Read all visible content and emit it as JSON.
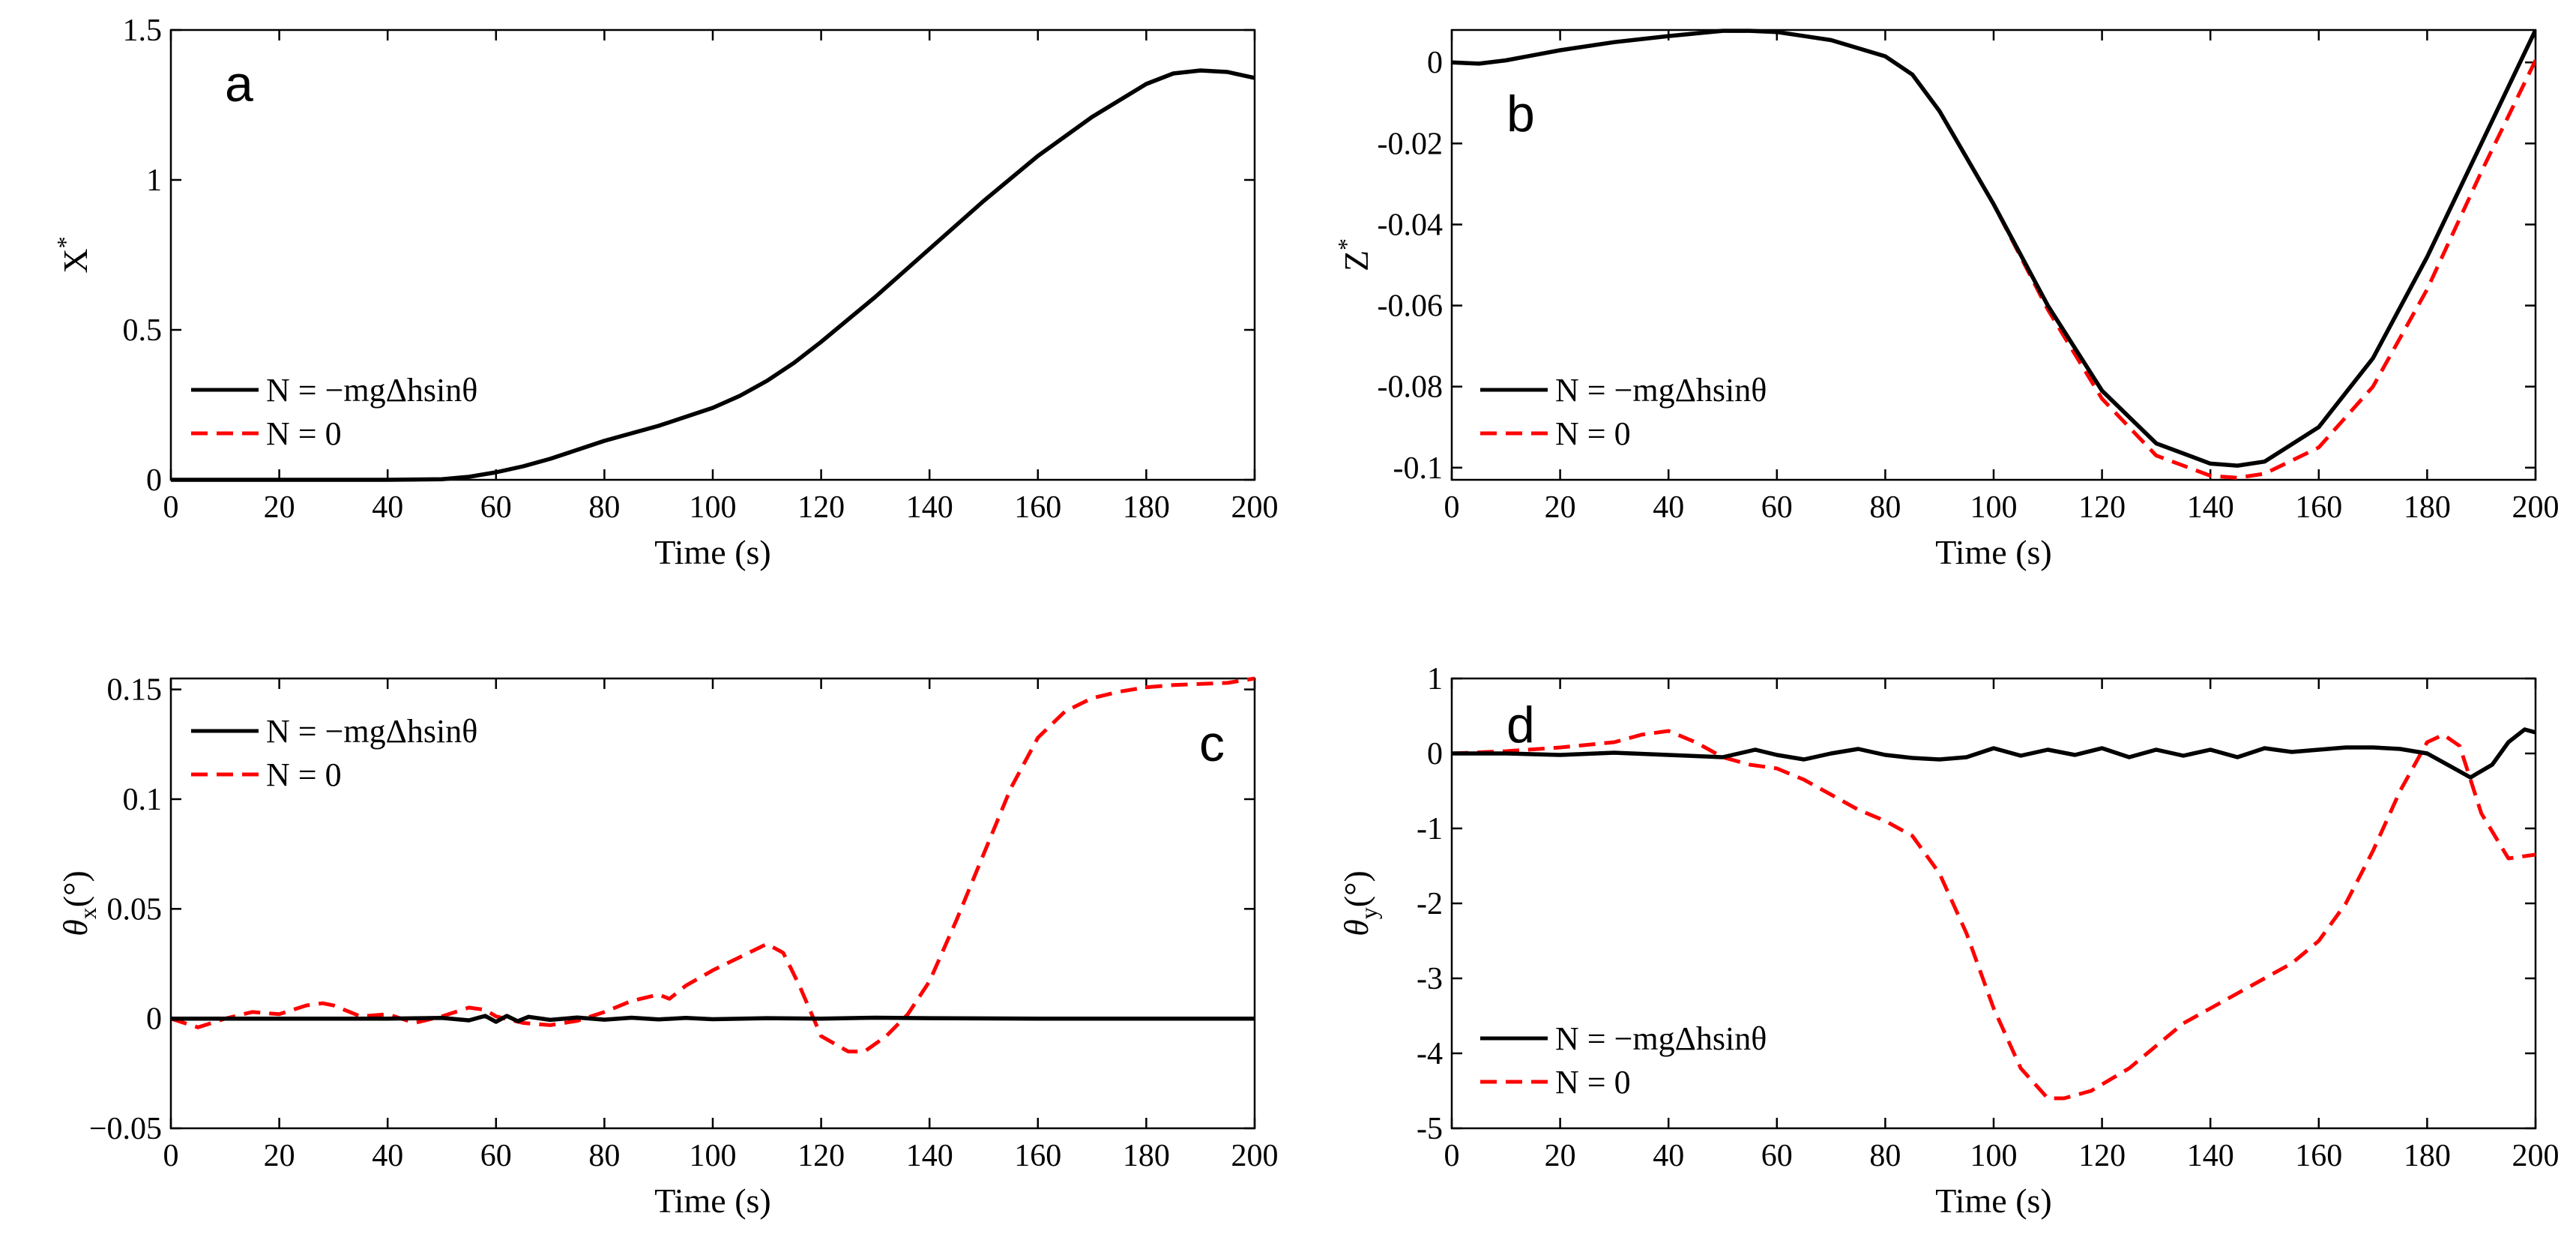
{
  "colors": {
    "solid": "#000000",
    "dashed": "#ff0000"
  },
  "chart_data": [
    {
      "id": "a",
      "type": "line",
      "panel_label": "a",
      "xlabel": "Time (s)",
      "ylabel": "X",
      "ylabel_sup": "*",
      "xlim": [
        0,
        200
      ],
      "ylim": [
        0,
        1.5
      ],
      "xticks": [
        "0",
        "20",
        "40",
        "60",
        "80",
        "100",
        "120",
        "140",
        "160",
        "180",
        "200"
      ],
      "yticks": [
        {
          "v": 0,
          "t": "0"
        },
        {
          "v": 0.5,
          "t": "0.5"
        },
        {
          "v": 1,
          "t": "1"
        },
        {
          "v": 1.5,
          "t": "1.5"
        }
      ],
      "legend": [
        "N = −mgΔhsinθ",
        "N = 0"
      ],
      "series": [
        {
          "name": "N = −mgΔhsinθ",
          "style": "solid",
          "x": [
            0,
            20,
            40,
            50,
            55,
            60,
            65,
            70,
            75,
            80,
            85,
            90,
            95,
            100,
            105,
            110,
            115,
            120,
            130,
            140,
            150,
            160,
            170,
            180,
            185,
            190,
            195,
            200
          ],
          "y": [
            0,
            0,
            0,
            0.002,
            0.01,
            0.025,
            0.045,
            0.07,
            0.1,
            0.13,
            0.155,
            0.18,
            0.21,
            0.24,
            0.28,
            0.33,
            0.39,
            0.46,
            0.61,
            0.77,
            0.93,
            1.08,
            1.21,
            1.32,
            1.355,
            1.365,
            1.36,
            1.34
          ]
        },
        {
          "name": "N = 0",
          "style": "dashed",
          "x": [
            0,
            20,
            40,
            50,
            55,
            60,
            65,
            70,
            75,
            80,
            85,
            90,
            95,
            100,
            105,
            110,
            115,
            120,
            130,
            140,
            150,
            160,
            170,
            180,
            185,
            190,
            195,
            200
          ],
          "y": [
            0,
            0,
            0,
            0.002,
            0.01,
            0.025,
            0.045,
            0.07,
            0.1,
            0.13,
            0.155,
            0.18,
            0.21,
            0.24,
            0.28,
            0.33,
            0.39,
            0.46,
            0.61,
            0.77,
            0.93,
            1.08,
            1.21,
            1.32,
            1.355,
            1.365,
            1.36,
            1.34
          ]
        }
      ]
    },
    {
      "id": "b",
      "type": "line",
      "panel_label": "b",
      "xlabel": "Time (s)",
      "ylabel": "Z",
      "ylabel_sup": "*",
      "xlim": [
        0,
        200
      ],
      "ylim": [
        -0.103,
        0.008
      ],
      "xticks": [
        "0",
        "20",
        "40",
        "60",
        "80",
        "100",
        "120",
        "140",
        "160",
        "180",
        "200"
      ],
      "yticks": [
        {
          "v": 0,
          "t": "0"
        },
        {
          "v": -0.02,
          "t": "-0.02"
        },
        {
          "v": -0.04,
          "t": "-0.04"
        },
        {
          "v": -0.06,
          "t": "-0.06"
        },
        {
          "v": -0.08,
          "t": "-0.08"
        },
        {
          "v": -0.1,
          "t": "-0.1"
        }
      ],
      "legend": [
        "N = −mgΔhsinθ",
        "N = 0"
      ],
      "series": [
        {
          "name": "N = −mgΔhsinθ",
          "style": "solid",
          "x": [
            0,
            5,
            10,
            20,
            30,
            40,
            50,
            55,
            60,
            70,
            80,
            85,
            90,
            100,
            110,
            120,
            130,
            140,
            145,
            150,
            160,
            170,
            180,
            190,
            200
          ],
          "y": [
            0,
            -0.0003,
            0.0005,
            0.003,
            0.005,
            0.0065,
            0.0078,
            0.0078,
            0.0075,
            0.0055,
            0.0015,
            -0.003,
            -0.012,
            -0.035,
            -0.06,
            -0.081,
            -0.094,
            -0.099,
            -0.0995,
            -0.0985,
            -0.09,
            -0.073,
            -0.048,
            -0.02,
            0.008
          ]
        },
        {
          "name": "N = 0",
          "style": "dashed",
          "x": [
            0,
            5,
            10,
            20,
            30,
            40,
            50,
            55,
            60,
            70,
            80,
            85,
            90,
            100,
            110,
            120,
            130,
            140,
            145,
            150,
            160,
            170,
            180,
            190,
            200
          ],
          "y": [
            0,
            -0.0003,
            0.0005,
            0.003,
            0.005,
            0.0065,
            0.0078,
            0.0078,
            0.0075,
            0.0055,
            0.0015,
            -0.003,
            -0.012,
            -0.035,
            -0.061,
            -0.083,
            -0.097,
            -0.102,
            -0.1025,
            -0.1015,
            -0.095,
            -0.08,
            -0.056,
            -0.027,
            0.0005
          ]
        }
      ]
    },
    {
      "id": "c",
      "type": "line",
      "panel_label": "c",
      "xlabel": "Time (s)",
      "ylabel": "θ",
      "ylabel_sub": "x",
      "ylabel_suffix": "(°)",
      "xlim": [
        0,
        200
      ],
      "ylim": [
        -0.05,
        0.155
      ],
      "xticks": [
        "0",
        "20",
        "40",
        "60",
        "80",
        "100",
        "120",
        "140",
        "160",
        "180",
        "200"
      ],
      "yticks": [
        {
          "v": -0.05,
          "t": "−0.05"
        },
        {
          "v": 0,
          "t": "0"
        },
        {
          "v": 0.05,
          "t": "0.05"
        },
        {
          "v": 0.1,
          "t": "0.1"
        },
        {
          "v": 0.15,
          "t": "0.15"
        }
      ],
      "legend": [
        "N = −mgΔhsinθ",
        "N = 0"
      ],
      "series": [
        {
          "name": "N = −mgΔhsinθ",
          "style": "solid",
          "x": [
            0,
            20,
            40,
            50,
            55,
            58,
            60,
            62,
            64,
            66,
            70,
            75,
            80,
            85,
            90,
            95,
            100,
            110,
            120,
            130,
            140,
            160,
            180,
            200
          ],
          "y": [
            0,
            0,
            0,
            0.0003,
            -0.0008,
            0.0012,
            -0.0015,
            0.0012,
            -0.0012,
            0.0008,
            -0.0006,
            0.0005,
            -0.0005,
            0.0004,
            -0.0004,
            0.0003,
            -0.0003,
            0.0002,
            0,
            0.0004,
            0.0002,
            0,
            0,
            0
          ]
        },
        {
          "name": "N = 0",
          "style": "dashed",
          "x": [
            0,
            5,
            10,
            15,
            20,
            25,
            28,
            30,
            35,
            40,
            45,
            50,
            55,
            58,
            60,
            65,
            70,
            75,
            80,
            85,
            90,
            92,
            95,
            100,
            105,
            110,
            113,
            116,
            120,
            125,
            128,
            132,
            136,
            140,
            145,
            150,
            155,
            160,
            165,
            170,
            175,
            180,
            185,
            190,
            195,
            200
          ],
          "y": [
            0,
            -0.004,
            0,
            0.003,
            0.002,
            0.006,
            0.007,
            0.006,
            0.001,
            0.002,
            -0.002,
            0.001,
            0.005,
            0.004,
            0.001,
            -0.002,
            -0.003,
            -0.001,
            0.003,
            0.008,
            0.011,
            0.009,
            0.015,
            0.022,
            0.028,
            0.034,
            0.03,
            0.015,
            -0.008,
            -0.015,
            -0.015,
            -0.008,
            0.002,
            0.017,
            0.045,
            0.075,
            0.105,
            0.128,
            0.14,
            0.146,
            0.149,
            0.151,
            0.152,
            0.1525,
            0.153,
            0.155
          ]
        }
      ]
    },
    {
      "id": "d",
      "type": "line",
      "panel_label": "d",
      "xlabel": "Time (s)",
      "ylabel": "θ",
      "ylabel_sub": "y",
      "ylabel_suffix": "(°)",
      "xlim": [
        0,
        200
      ],
      "ylim": [
        -5,
        1
      ],
      "xticks": [
        "0",
        "20",
        "40",
        "60",
        "80",
        "100",
        "120",
        "140",
        "160",
        "180",
        "200"
      ],
      "yticks": [
        {
          "v": -5,
          "t": "-5"
        },
        {
          "v": -4,
          "t": "-4"
        },
        {
          "v": -3,
          "t": "-3"
        },
        {
          "v": -2,
          "t": "-2"
        },
        {
          "v": -1,
          "t": "-1"
        },
        {
          "v": 0,
          "t": "0"
        },
        {
          "v": 1,
          "t": "1"
        }
      ],
      "legend": [
        "N = −mgΔhsinθ",
        "N = 0"
      ],
      "series": [
        {
          "name": "N = −mgΔhsinθ",
          "style": "solid",
          "x": [
            0,
            10,
            20,
            30,
            40,
            50,
            56,
            60,
            65,
            70,
            75,
            80,
            85,
            90,
            95,
            100,
            105,
            110,
            115,
            120,
            125,
            130,
            135,
            140,
            145,
            150,
            155,
            160,
            165,
            170,
            175,
            180,
            185,
            188,
            192,
            195,
            198,
            200
          ],
          "y": [
            0,
            0,
            -0.02,
            0.01,
            -0.02,
            -0.05,
            0.05,
            -0.02,
            -0.08,
            0,
            0.06,
            -0.02,
            -0.06,
            -0.08,
            -0.05,
            0.07,
            -0.03,
            0.05,
            -0.02,
            0.07,
            -0.05,
            0.05,
            -0.03,
            0.05,
            -0.05,
            0.07,
            0.02,
            0.05,
            0.08,
            0.08,
            0.06,
            0,
            -0.2,
            -0.32,
            -0.15,
            0.15,
            0.32,
            0.28
          ]
        },
        {
          "name": "N = 0",
          "style": "dashed",
          "x": [
            0,
            10,
            20,
            30,
            35,
            40,
            45,
            50,
            55,
            60,
            65,
            70,
            75,
            80,
            85,
            90,
            95,
            100,
            105,
            110,
            113,
            118,
            125,
            130,
            135,
            140,
            145,
            150,
            155,
            160,
            165,
            170,
            175,
            180,
            183,
            186,
            190,
            195,
            200
          ],
          "y": [
            0,
            0.03,
            0.08,
            0.15,
            0.25,
            0.3,
            0.15,
            -0.05,
            -0.15,
            -0.2,
            -0.35,
            -0.55,
            -0.75,
            -0.9,
            -1.1,
            -1.6,
            -2.4,
            -3.4,
            -4.2,
            -4.6,
            -4.6,
            -4.5,
            -4.2,
            -3.9,
            -3.6,
            -3.4,
            -3.2,
            -3.0,
            -2.8,
            -2.5,
            -2.0,
            -1.3,
            -0.5,
            0.15,
            0.25,
            0.1,
            -0.8,
            -1.4,
            -1.35
          ]
        }
      ]
    }
  ]
}
